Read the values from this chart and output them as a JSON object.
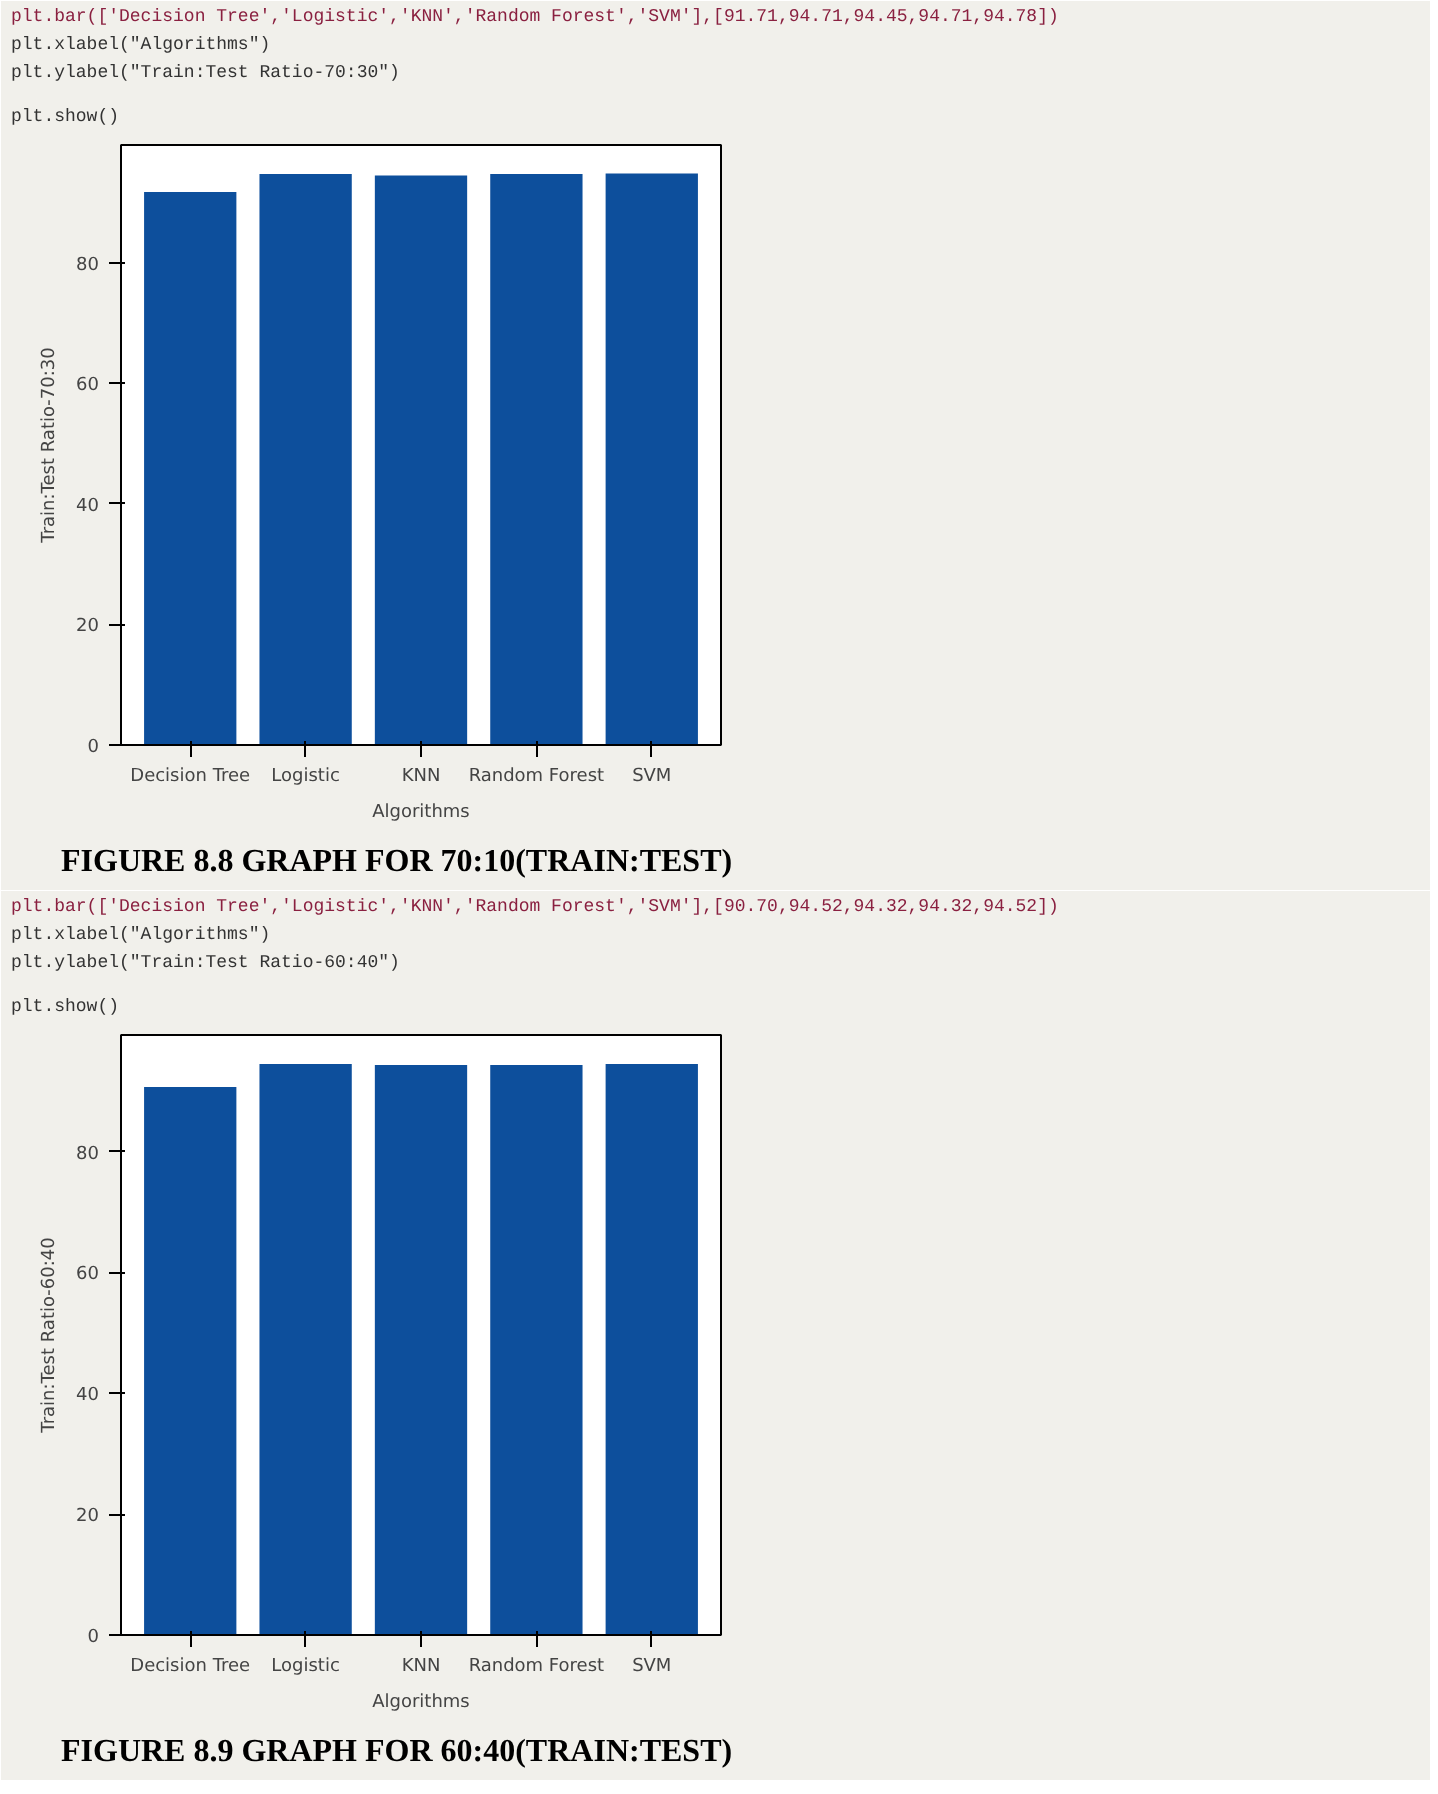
{
  "chart_data": [
    {
      "type": "bar",
      "title": "FIGURE 8.8 GRAPH FOR 70:10(TRAIN:TEST)",
      "xlabel": "Algorithms",
      "ylabel": "Train:Test Ratio-70:30",
      "categories": [
        "Decision Tree",
        "Logistic",
        "KNN",
        "Random Forest",
        "SVM"
      ],
      "values": [
        91.71,
        94.71,
        94.45,
        94.71,
        94.78
      ],
      "color": "#0d4f9c",
      "ylim": [
        0,
        99.5
      ],
      "yticks": [
        0,
        20,
        40,
        60,
        80
      ],
      "grid": false,
      "annotations": [
        "plt.bar(['Decision Tree','Logistic','KNN','Random Forest','SVM'],[91.71,94.71,94.45,94.71,94.78])",
        "plt.xlabel(\"Algorithms\")",
        "plt.ylabel(\"Train:Test Ratio-70:30\")",
        "plt.show()"
      ]
    },
    {
      "type": "bar",
      "title": "FIGURE 8.9 GRAPH FOR 60:40(TRAIN:TEST)",
      "xlabel": "Algorithms",
      "ylabel": "Train:Test Ratio-60:40",
      "categories": [
        "Decision Tree",
        "Logistic",
        "KNN",
        "Random Forest",
        "SVM"
      ],
      "values": [
        90.7,
        94.52,
        94.32,
        94.32,
        94.52
      ],
      "color": "#0d4f9c",
      "ylim": [
        0,
        99.3
      ],
      "yticks": [
        0,
        20,
        40,
        60,
        80
      ],
      "grid": false,
      "annotations": [
        "plt.bar(['Decision Tree','Logistic','KNN','Random Forest','SVM'],[90.70,94.52,94.32,94.32,94.52])",
        "plt.xlabel(\"Algorithms\")",
        "plt.ylabel(\"Train:Test Ratio-60:40\")",
        "plt.show()"
      ]
    }
  ]
}
